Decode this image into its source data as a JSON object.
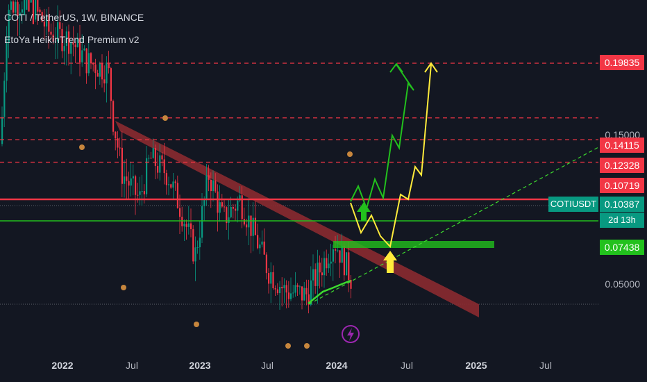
{
  "header": {
    "title": "COTI / TetherUS, 1W, BINANCE",
    "indicator": "EtoYa HeikinTrend Premium v2"
  },
  "colors": {
    "background": "#131722",
    "up": "#089981",
    "down": "#f23645",
    "resistance_line": "#f23645",
    "downtrend_band": "#8b2a30",
    "support_zone": "#22c11d",
    "bull_arrow": "#22c11d",
    "yellow_path": "#ffeb3b",
    "trail_line": "#3ddc2f"
  },
  "price_axis": {
    "labels": [
      "0.15000",
      "0.05000"
    ],
    "current_symbol": "COTIUSDT",
    "current_price": "0.10387",
    "countdown": "2d 13h",
    "levels": [
      {
        "price": "0.19835",
        "style": "red"
      },
      {
        "price": "0.14115",
        "style": "red"
      },
      {
        "price": "0.12328",
        "style": "red"
      },
      {
        "price": "0.10719",
        "style": "red"
      },
      {
        "price": "0.07438",
        "style": "lime"
      }
    ]
  },
  "time_axis": {
    "labels": [
      {
        "text": "2022",
        "bold": true
      },
      {
        "text": "Jul",
        "bold": false
      },
      {
        "text": "2023",
        "bold": true
      },
      {
        "text": "Jul",
        "bold": false
      },
      {
        "text": "2024",
        "bold": true
      },
      {
        "text": "Jul",
        "bold": false
      },
      {
        "text": "2025",
        "bold": true
      },
      {
        "text": "Jul",
        "bold": false
      }
    ]
  },
  "chart_data": {
    "type": "candlestick",
    "symbol": "COTI / TetherUS",
    "interval": "1W",
    "exchange": "BINANCE",
    "y_scale": "log",
    "horizontal_levels": [
      0.19835,
      0.14115,
      0.12328,
      0.10719,
      0.07438
    ],
    "current_price": 0.10387,
    "candles_range": {
      "start": "2021-09",
      "end": "2024-03"
    },
    "projection_green": [
      0.10387,
      0.115,
      0.09,
      0.125,
      0.105,
      0.15,
      0.14,
      0.2
    ],
    "projection_yellow": [
      0.10387,
      0.085,
      0.095,
      0.078,
      0.07438,
      0.1,
      0.12,
      0.11,
      0.135,
      0.2
    ]
  }
}
